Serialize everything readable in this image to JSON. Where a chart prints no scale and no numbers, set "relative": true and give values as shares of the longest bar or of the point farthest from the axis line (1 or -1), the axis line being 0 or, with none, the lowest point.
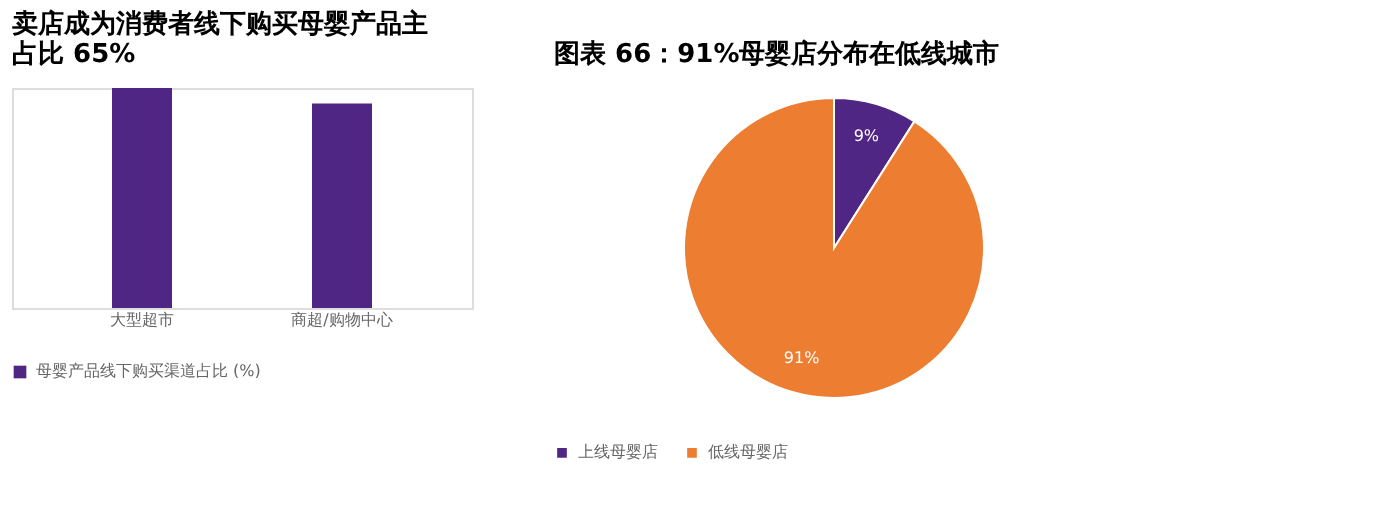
{
  "chart_data": [
    {
      "type": "bar",
      "title": "卖店成为消费者线下购买母婴产品主占比 65%",
      "categories": [
        "大型超市",
        "商超/购物中心"
      ],
      "relative": true,
      "series": [
        {
          "name": "母婴产品线下购买渠道占比 (%)",
          "color": "#4f2683",
          "values": [
            1,
            0.93
          ]
        }
      ],
      "legend": "bottom left"
    },
    {
      "type": "pie",
      "title": "图表 66：91%母婴店分布在低线城市",
      "categories": [
        "上线母婴店",
        "低线母婴店"
      ],
      "values": [
        9,
        91
      ],
      "colors": [
        "#4f2683",
        "#ed7d31"
      ],
      "value_labels": [
        "9%",
        "91%"
      ],
      "legend": "bottom"
    }
  ]
}
